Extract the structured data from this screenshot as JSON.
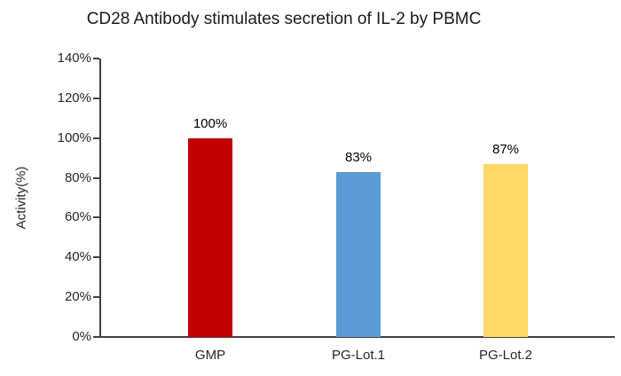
{
  "title": "CD28 Antibody stimulates secretion of IL-2 by PBMC",
  "chart_data": {
    "type": "bar",
    "title": "CD28 Antibody stimulates secretion of IL-2 by PBMC",
    "categories": [
      "GMP",
      "PG-Lot.1",
      "PG-Lot.2"
    ],
    "values": [
      100,
      83,
      87
    ],
    "data_labels": [
      "100%",
      "83%",
      "87%"
    ],
    "bar_colors": [
      "#C00000",
      "#5B9BD5",
      "#FFD966"
    ],
    "xlabel": "",
    "ylabel": "Activity(%)",
    "ylim": [
      0,
      140
    ],
    "ytick_values": [
      0,
      20,
      40,
      60,
      80,
      100,
      120,
      140
    ],
    "ytick_labels": [
      "0%",
      "20%",
      "40%",
      "60%",
      "80%",
      "100%",
      "120%",
      "140%"
    ],
    "grid": false,
    "legend": "none",
    "axis_color": "#404040",
    "text_color": "#262626"
  }
}
